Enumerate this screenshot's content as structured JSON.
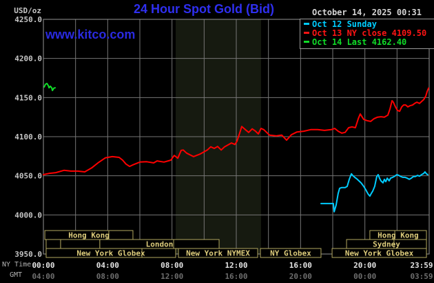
{
  "header": {
    "y_unit": "USD/oz",
    "title": "24 Hour Spot Gold (Bid)",
    "datetime": "October 14, 2025 00:31",
    "watermark": "www.kitco.com"
  },
  "legend": [
    {
      "label": "Oct 12 Sunday",
      "color": "#00ccff"
    },
    {
      "label": "Oct 13 NY close 4109.50",
      "color": "#ff1414"
    },
    {
      "label": "Oct 14 Last 4162.40",
      "color": "#10dc28"
    }
  ],
  "axes": {
    "ny_time_label": "NY Time",
    "gmt_label": "GMT",
    "y_tick_labels": [
      "4250.0",
      "4200.0",
      "4150.0",
      "4100.0",
      "4050.0",
      "4000.0",
      "3950.0"
    ],
    "y_tick_values": [
      4250,
      4200,
      4150,
      4100,
      4050,
      4000,
      3950
    ],
    "x_tick_hours": [
      0,
      4,
      8,
      12,
      16,
      20,
      23.98
    ],
    "x_tick_labels_ny": [
      "00:00",
      "04:00",
      "08:00",
      "12:00",
      "16:00",
      "20:00",
      "23:59"
    ],
    "x_tick_labels_gmt": [
      "04:00",
      "08:00",
      "12:00",
      "16:00",
      "20:00",
      "00:00",
      "03:59"
    ]
  },
  "colors": {
    "background": "#000000",
    "band": "#161a10",
    "grid": "#767676",
    "border": "#969696",
    "axis_text": "#c6c6c6",
    "time_text": "#e4e4e4",
    "gmt_text": "#6e6e6e",
    "session_text": "#decd7c",
    "session_border": "#b2a75f",
    "red": "#ff0000",
    "cyan": "#00ccff",
    "green": "#10dc28"
  },
  "market_sessions": {
    "rows": [
      {
        "boxes": [
          {
            "label": "Hong Kong",
            "start": 0.09,
            "end": 5.57,
            "dividers": [
              4.07
            ]
          },
          {
            "label": "Hong Kong",
            "start": 20.31,
            "end": 23.83,
            "dividers": [
              21.86
            ]
          }
        ]
      },
      {
        "boxes": [
          {
            "label": "",
            "start": 0.17,
            "end": 1.07,
            "dividers": []
          },
          {
            "label": "",
            "start": 1.07,
            "end": 3.51,
            "dividers": []
          },
          {
            "label": "London",
            "start": 3.51,
            "end": 10.93,
            "dividers": [
              8.1
            ]
          },
          {
            "label": "Sydney",
            "start": 18.86,
            "end": 23.83,
            "dividers": [
              21.81
            ]
          }
        ]
      },
      {
        "boxes": [
          {
            "label": "New York Globex",
            "start": 0.17,
            "end": 8.23,
            "dividers": [
              6.13
            ]
          },
          {
            "label": "New York NYMEX",
            "start": 8.4,
            "end": 13.33,
            "dividers": []
          },
          {
            "label": "NY Globex",
            "start": 13.5,
            "end": 17.27,
            "dividers": []
          },
          {
            "label": "New York Globex",
            "start": 17.96,
            "end": 23.83,
            "dividers": []
          }
        ]
      }
    ]
  },
  "chart_data": {
    "type": "line",
    "title": "24 Hour Spot Gold (Bid)",
    "xlabel": "NY Time",
    "ylabel": "USD/oz",
    "ylim": [
      3950,
      4250
    ],
    "xlim_hours": [
      0,
      24
    ],
    "grid": {
      "x_step_hours": 2,
      "y_step": 50,
      "visible": true
    },
    "highlight_band_hours": [
      8.23,
      13.54
    ],
    "legend_position": "top-right",
    "series": [
      {
        "name": "Oct 12 Sunday",
        "color": "#00ccff",
        "points": [
          [
            17.27,
            4014.5
          ],
          [
            18.04,
            4014.5
          ],
          [
            18.09,
            4004
          ],
          [
            18.21,
            4012.5
          ],
          [
            18.34,
            4027.5
          ],
          [
            18.43,
            4034
          ],
          [
            18.56,
            4035
          ],
          [
            18.77,
            4035
          ],
          [
            18.9,
            4036.5
          ],
          [
            19.03,
            4045.5
          ],
          [
            19.16,
            4052.5
          ],
          [
            19.24,
            4050.5
          ],
          [
            19.37,
            4048
          ],
          [
            19.5,
            4046
          ],
          [
            19.63,
            4043.5
          ],
          [
            19.76,
            4041
          ],
          [
            19.93,
            4036.5
          ],
          [
            20.06,
            4032
          ],
          [
            20.19,
            4027
          ],
          [
            20.31,
            4024
          ],
          [
            20.4,
            4027.5
          ],
          [
            20.49,
            4030.5
          ],
          [
            20.61,
            4036.5
          ],
          [
            20.74,
            4049
          ],
          [
            20.83,
            4051.5
          ],
          [
            20.91,
            4047
          ],
          [
            21,
            4043.5
          ],
          [
            21.13,
            4041
          ],
          [
            21.21,
            4045.5
          ],
          [
            21.3,
            4042.5
          ],
          [
            21.39,
            4047
          ],
          [
            21.51,
            4043.5
          ],
          [
            21.6,
            4047
          ],
          [
            21.73,
            4048
          ],
          [
            21.86,
            4049.5
          ],
          [
            21.99,
            4051.5
          ],
          [
            22.11,
            4050.5
          ],
          [
            22.24,
            4049
          ],
          [
            22.37,
            4048
          ],
          [
            22.5,
            4048
          ],
          [
            22.63,
            4047
          ],
          [
            22.76,
            4045.5
          ],
          [
            22.89,
            4047
          ],
          [
            23.01,
            4049
          ],
          [
            23.14,
            4049
          ],
          [
            23.27,
            4050.5
          ],
          [
            23.4,
            4049.5
          ],
          [
            23.53,
            4051.5
          ],
          [
            23.66,
            4053
          ],
          [
            23.74,
            4055
          ],
          [
            23.83,
            4052.5
          ],
          [
            23.91,
            4051.5
          ]
        ]
      },
      {
        "name": "Oct 13",
        "color": "#ff0000",
        "points": [
          [
            0,
            4051.5
          ],
          [
            0.34,
            4053
          ],
          [
            0.77,
            4054
          ],
          [
            1.29,
            4057
          ],
          [
            1.71,
            4056
          ],
          [
            2.14,
            4056
          ],
          [
            2.57,
            4055
          ],
          [
            3,
            4060
          ],
          [
            3.43,
            4067
          ],
          [
            3.86,
            4073
          ],
          [
            4.29,
            4074.5
          ],
          [
            4.71,
            4073.5
          ],
          [
            4.93,
            4070
          ],
          [
            5.14,
            4065
          ],
          [
            5.36,
            4062
          ],
          [
            5.57,
            4064
          ],
          [
            6,
            4067.5
          ],
          [
            6.43,
            4068
          ],
          [
            6.86,
            4066.5
          ],
          [
            7.07,
            4069
          ],
          [
            7.5,
            4067.5
          ],
          [
            7.93,
            4070
          ],
          [
            8.14,
            4076
          ],
          [
            8.36,
            4072.5
          ],
          [
            8.57,
            4082.5
          ],
          [
            8.7,
            4083
          ],
          [
            8.91,
            4079
          ],
          [
            9.34,
            4074.5
          ],
          [
            9.77,
            4078
          ],
          [
            10.2,
            4083
          ],
          [
            10.41,
            4087
          ],
          [
            10.63,
            4085
          ],
          [
            10.84,
            4087.5
          ],
          [
            11.06,
            4083
          ],
          [
            11.27,
            4087
          ],
          [
            11.49,
            4089.5
          ],
          [
            11.7,
            4092
          ],
          [
            11.91,
            4090
          ],
          [
            12.04,
            4094
          ],
          [
            12.21,
            4104.5
          ],
          [
            12.34,
            4113
          ],
          [
            12.56,
            4109
          ],
          [
            12.77,
            4105.5
          ],
          [
            12.99,
            4110
          ],
          [
            13.2,
            4107
          ],
          [
            13.37,
            4103.5
          ],
          [
            13.54,
            4110.5
          ],
          [
            13.71,
            4109
          ],
          [
            14.06,
            4102
          ],
          [
            14.49,
            4101
          ],
          [
            14.83,
            4102
          ],
          [
            15.13,
            4095.5
          ],
          [
            15.43,
            4102.5
          ],
          [
            15.77,
            4106
          ],
          [
            16.2,
            4107
          ],
          [
            16.63,
            4109
          ],
          [
            17.06,
            4109
          ],
          [
            17.49,
            4108
          ],
          [
            17.91,
            4109
          ],
          [
            18.13,
            4110.5
          ],
          [
            18.34,
            4107
          ],
          [
            18.56,
            4104.5
          ],
          [
            18.77,
            4105.5
          ],
          [
            18.99,
            4111.5
          ],
          [
            19.2,
            4112.5
          ],
          [
            19.41,
            4111.5
          ],
          [
            19.59,
            4123
          ],
          [
            19.71,
            4129
          ],
          [
            19.93,
            4122
          ],
          [
            20.14,
            4120.5
          ],
          [
            20.36,
            4119.5
          ],
          [
            20.57,
            4123
          ],
          [
            20.79,
            4125
          ],
          [
            21,
            4125.5
          ],
          [
            21.21,
            4125
          ],
          [
            21.43,
            4127.5
          ],
          [
            21.56,
            4135.5
          ],
          [
            21.69,
            4146
          ],
          [
            21.77,
            4144
          ],
          [
            21.9,
            4138
          ],
          [
            22.03,
            4133.5
          ],
          [
            22.16,
            4132.5
          ],
          [
            22.29,
            4138
          ],
          [
            22.41,
            4140.5
          ],
          [
            22.54,
            4140.5
          ],
          [
            22.67,
            4138
          ],
          [
            22.8,
            4139.5
          ],
          [
            22.97,
            4140.5
          ],
          [
            23.1,
            4142.5
          ],
          [
            23.23,
            4144
          ],
          [
            23.4,
            4142.5
          ],
          [
            23.53,
            4145
          ],
          [
            23.66,
            4147.5
          ],
          [
            23.79,
            4152
          ],
          [
            23.87,
            4157.5
          ],
          [
            23.96,
            4162
          ]
        ]
      },
      {
        "name": "Oct 14",
        "color": "#10dc28",
        "points": [
          [
            0.05,
            4163.5
          ],
          [
            0.13,
            4167
          ],
          [
            0.22,
            4168
          ],
          [
            0.3,
            4165.5
          ],
          [
            0.35,
            4162.5
          ],
          [
            0.43,
            4164.5
          ],
          [
            0.52,
            4162.5
          ],
          [
            0.56,
            4159
          ],
          [
            0.65,
            4162
          ],
          [
            0.73,
            4162.5
          ]
        ]
      }
    ]
  }
}
